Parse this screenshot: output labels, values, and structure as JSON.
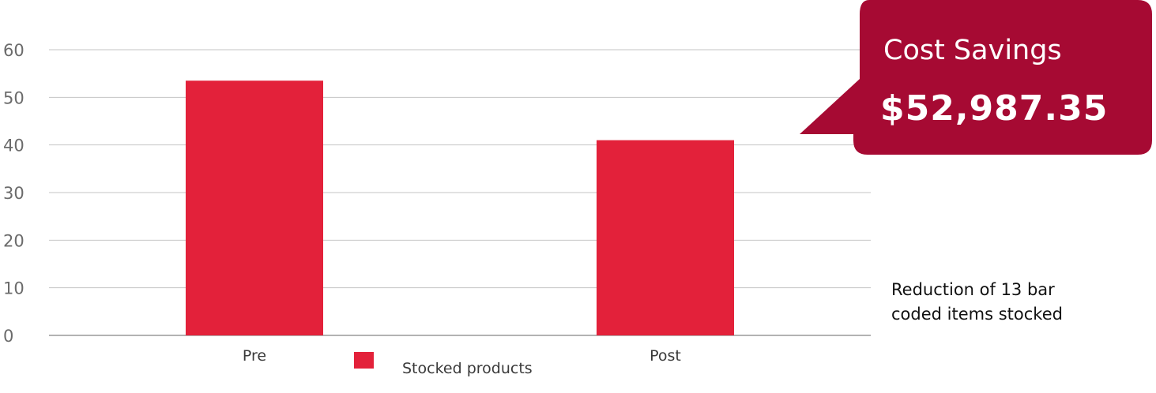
{
  "chart_data": {
    "type": "bar",
    "categories": [
      "Pre",
      "Post"
    ],
    "series": [
      {
        "name": "Stocked products",
        "values": [
          53.5,
          41
        ]
      }
    ],
    "ylim": [
      0,
      60
    ],
    "yticks": [
      0,
      10,
      20,
      30,
      40,
      50,
      60
    ],
    "grid": true,
    "legend_position": "bottom",
    "bar_color": "#e3213a",
    "title": "",
    "xlabel": "",
    "ylabel": ""
  },
  "callout": {
    "title": "Cost Savings",
    "value": "$52,987.35",
    "color": "#a60a33"
  },
  "annotation": {
    "line1": "Reduction of 13 bar",
    "line2": "coded items stocked"
  }
}
